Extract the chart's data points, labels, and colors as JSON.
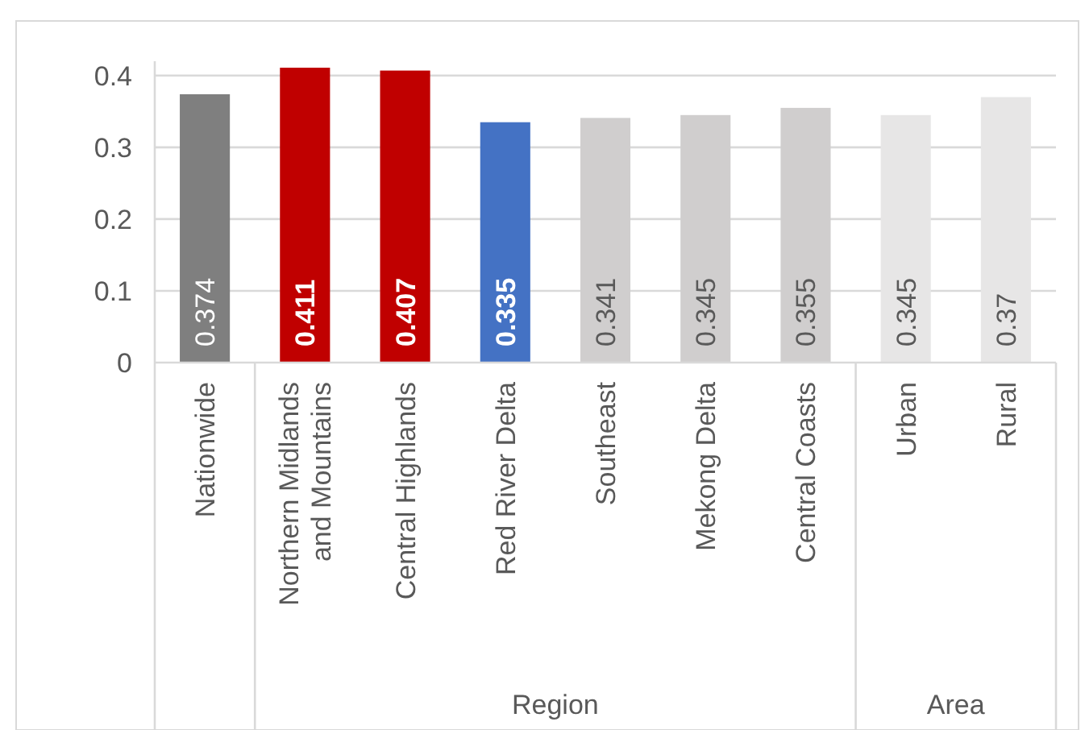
{
  "chart_data": {
    "type": "bar",
    "categories": [
      "Nationwide",
      "Northern Midlands and Mountains",
      "Central Highlands",
      "Red River Delta",
      "Southeast",
      "Mekong Delta",
      "Central Coasts",
      "Urban",
      "Rural"
    ],
    "values": [
      0.374,
      0.411,
      0.407,
      0.335,
      0.341,
      0.345,
      0.355,
      0.345,
      0.37
    ],
    "colors": [
      "#7f7f7f",
      "#c00000",
      "#c00000",
      "#4472c4",
      "#d0cece",
      "#d0cece",
      "#d0cece",
      "#e7e6e6",
      "#e7e6e6"
    ],
    "ylim": [
      0,
      0.42
    ],
    "yticks": [
      0,
      0.1,
      0.2,
      0.3,
      0.4
    ],
    "grid": true,
    "data_labels": true,
    "annotations": [
      "Region",
      "Area"
    ]
  }
}
